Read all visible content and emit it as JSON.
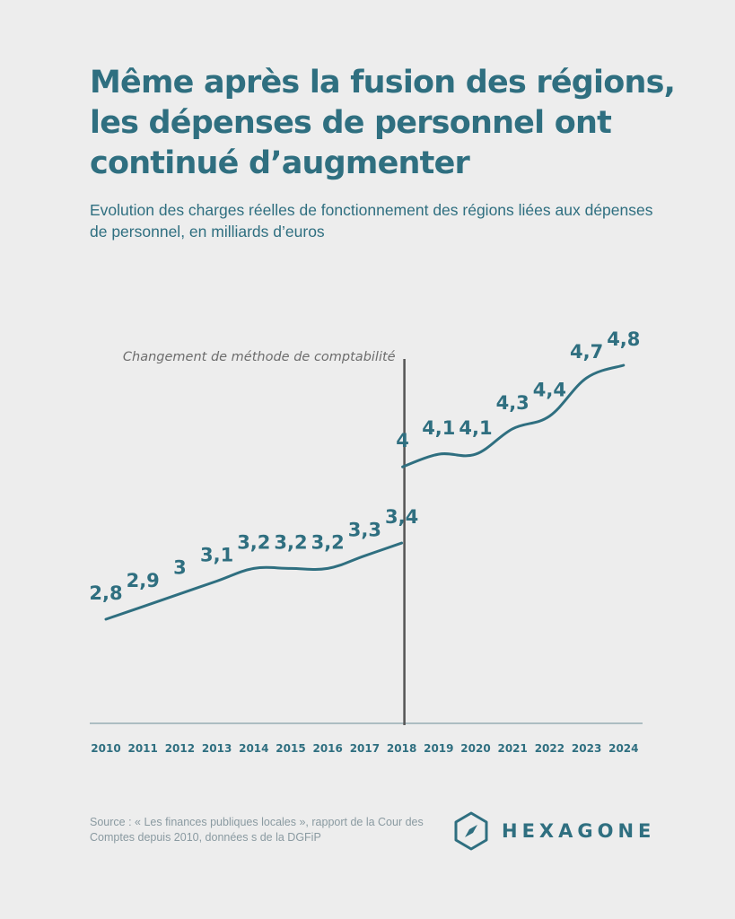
{
  "title": "Même après la fusion des régions, les dépenses de personnel ont continué d’augmenter",
  "subtitle": "Evolution des charges réelles de fonctionnement des régions liées aux dépenses de personnel, en milliards d’euros",
  "source": "Source : « Les finances publiques locales », rapport de la Cour des Comptes depuis 2010, données s de la DGFiP",
  "logo": {
    "text": "HEXAGONE",
    "icon": "compass-hexagon-icon"
  },
  "colors": {
    "accent": "#2f6f80",
    "divider": "#555555",
    "background": "#ededed",
    "muted": "#8a9aa1"
  },
  "chart_data": {
    "type": "line",
    "title": "Même après la fusion des régions, les dépenses de personnel ont continué d’augmenter",
    "subtitle": "Evolution des charges réelles de fonctionnement des régions liées aux dépenses de personnel, en milliards d’euros",
    "xlabel": "",
    "ylabel": "",
    "x": [
      "2010",
      "2011",
      "2012",
      "2013",
      "2014",
      "2015",
      "2016",
      "2017",
      "2018",
      "2019",
      "2020",
      "2021",
      "2022",
      "2023",
      "2024"
    ],
    "series": [
      {
        "segments": [
          {
            "x": [
              "2010",
              "2011",
              "2012",
              "2013",
              "2014",
              "2015",
              "2016",
              "2017",
              "2018"
            ],
            "values": [
              2.8,
              2.9,
              3,
              3.1,
              3.2,
              3.2,
              3.2,
              3.3,
              3.4
            ]
          },
          {
            "x": [
              "2018",
              "2019",
              "2020",
              "2021",
              "2022",
              "2023",
              "2024"
            ],
            "values": [
              4,
              4.1,
              4.1,
              4.3,
              4.4,
              4.7,
              4.8
            ]
          }
        ]
      }
    ],
    "data_labels": [
      {
        "x": "2010",
        "label": "2,8"
      },
      {
        "x": "2011",
        "label": "2,9"
      },
      {
        "x": "2012",
        "label": "3"
      },
      {
        "x": "2013",
        "label": "3,1"
      },
      {
        "x": "2014",
        "label": "3,2"
      },
      {
        "x": "2015",
        "label": "3,2"
      },
      {
        "x": "2016",
        "label": "3,2"
      },
      {
        "x": "2017",
        "label": "3,3"
      },
      {
        "x": "2018",
        "label": "3,4"
      },
      {
        "x": "2018",
        "label": "4"
      },
      {
        "x": "2019",
        "label": "4,1"
      },
      {
        "x": "2020",
        "label": "4,1"
      },
      {
        "x": "2021",
        "label": "4,3"
      },
      {
        "x": "2022",
        "label": "4,4"
      },
      {
        "x": "2023",
        "label": "4,7"
      },
      {
        "x": "2024",
        "label": "4,8"
      }
    ],
    "annotation": {
      "x": "2018",
      "text": "Changement de méthode de comptabilité"
    },
    "ylim": [
      2,
      5
    ],
    "grid": false,
    "legend": "none"
  }
}
